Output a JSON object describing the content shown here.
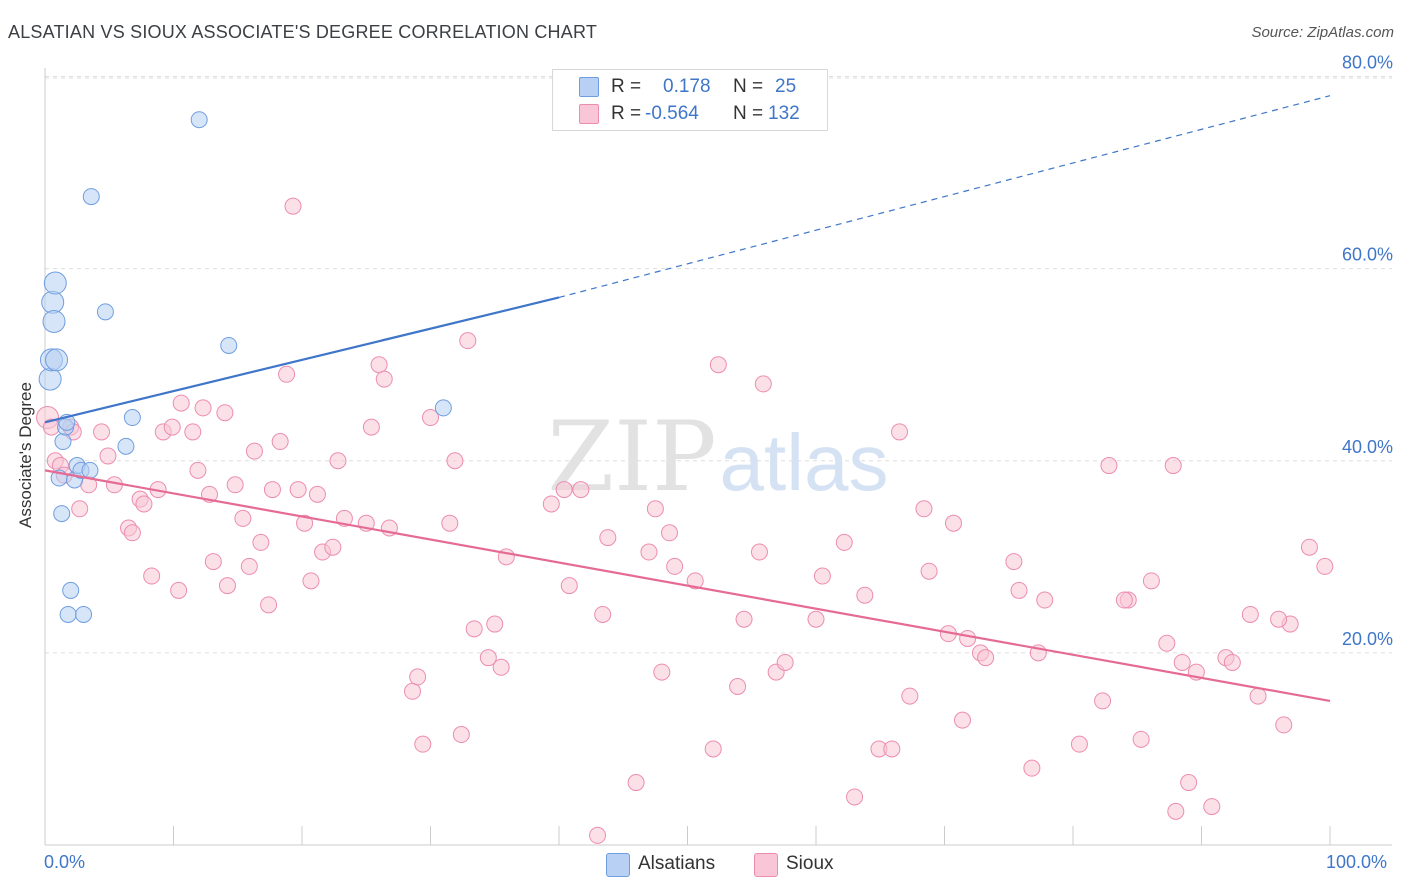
{
  "title": "ALSATIAN VS SIOUX ASSOCIATE'S DEGREE CORRELATION CHART",
  "source": "Source: ZipAtlas.com",
  "watermark": {
    "zip": "ZIP",
    "atlas": "atlas"
  },
  "colors": {
    "blue": "#3f76c9",
    "blue_fill": "#b7d0f3",
    "blue_stroke": "#6f9ee0",
    "pink": "#e56b94",
    "pink_fill": "#f8c6d6",
    "pink_stroke": "#ec8db0",
    "grid": "#dddddd"
  },
  "stats": {
    "alsatians": {
      "r_label": "R =",
      "r_value": "0.178",
      "n_label": "N =",
      "n_value": "25"
    },
    "sioux": {
      "r_label": "R =",
      "r_value": "-0.564",
      "n_label": "N =",
      "n_value": "132"
    }
  },
  "legend": {
    "alsatians": "Alsatians",
    "sioux": "Sioux"
  },
  "chart_data": {
    "type": "scatter",
    "title": "ALSATIAN VS SIOUX ASSOCIATE'S DEGREE CORRELATION CHART",
    "xlabel": "",
    "ylabel": "Associate's Degree",
    "xlim": [
      0,
      100
    ],
    "ylim": [
      0,
      80
    ],
    "x_tick_labels": [
      "0.0%",
      "100.0%"
    ],
    "y_tick_labels": [
      "20.0%",
      "40.0%",
      "60.0%",
      "80.0%"
    ],
    "y_ticks": [
      20,
      40,
      60,
      80
    ],
    "series": [
      {
        "name": "Alsatians",
        "points": [
          [
            0.4,
            48.5
          ],
          [
            0.5,
            50.5
          ],
          [
            0.6,
            56.5
          ],
          [
            0.7,
            54.5
          ],
          [
            0.8,
            58.5
          ],
          [
            0.9,
            50.5
          ],
          [
            1.1,
            38.2
          ],
          [
            1.3,
            34.5
          ],
          [
            1.4,
            42.0
          ],
          [
            1.6,
            43.5
          ],
          [
            1.7,
            44.0
          ],
          [
            1.8,
            24.0
          ],
          [
            2.0,
            26.5
          ],
          [
            2.3,
            38.0
          ],
          [
            2.5,
            39.5
          ],
          [
            2.8,
            39.0
          ],
          [
            3.0,
            24.0
          ],
          [
            3.5,
            39.0
          ],
          [
            3.6,
            67.5
          ],
          [
            4.7,
            55.5
          ],
          [
            6.3,
            41.5
          ],
          [
            6.8,
            44.5
          ],
          [
            12.0,
            75.5
          ],
          [
            14.3,
            52.0
          ],
          [
            31.0,
            45.5
          ]
        ],
        "trend": {
          "x0": 0,
          "y0": 44.0,
          "x1": 40,
          "y1": 57.0,
          "extend_to_x": 100,
          "extend_to_y": 78.0
        }
      },
      {
        "name": "Sioux",
        "points": [
          [
            0.2,
            44.5
          ],
          [
            0.5,
            43.5
          ],
          [
            0.8,
            40.0
          ],
          [
            1.2,
            39.5
          ],
          [
            1.5,
            38.5
          ],
          [
            2.0,
            43.5
          ],
          [
            2.2,
            43.0
          ],
          [
            2.7,
            35.0
          ],
          [
            3.4,
            37.5
          ],
          [
            4.4,
            43.0
          ],
          [
            4.9,
            40.5
          ],
          [
            5.4,
            37.5
          ],
          [
            6.5,
            33.0
          ],
          [
            6.8,
            32.5
          ],
          [
            7.4,
            36.0
          ],
          [
            7.7,
            35.5
          ],
          [
            8.3,
            28.0
          ],
          [
            8.8,
            37.0
          ],
          [
            9.2,
            43.0
          ],
          [
            9.9,
            43.5
          ],
          [
            10.4,
            26.5
          ],
          [
            10.6,
            46.0
          ],
          [
            11.5,
            43.0
          ],
          [
            11.9,
            39.0
          ],
          [
            12.3,
            45.5
          ],
          [
            12.8,
            36.5
          ],
          [
            13.1,
            29.5
          ],
          [
            14.0,
            45.0
          ],
          [
            14.2,
            27.0
          ],
          [
            14.8,
            37.5
          ],
          [
            15.4,
            34.0
          ],
          [
            15.9,
            29.0
          ],
          [
            16.3,
            41.0
          ],
          [
            16.8,
            31.5
          ],
          [
            17.4,
            25.0
          ],
          [
            17.7,
            37.0
          ],
          [
            18.3,
            42.0
          ],
          [
            18.8,
            49.0
          ],
          [
            19.3,
            66.5
          ],
          [
            19.7,
            37.0
          ],
          [
            20.2,
            33.5
          ],
          [
            20.7,
            27.5
          ],
          [
            21.2,
            36.5
          ],
          [
            21.6,
            30.5
          ],
          [
            22.4,
            31.0
          ],
          [
            22.8,
            40.0
          ],
          [
            23.3,
            34.0
          ],
          [
            25.0,
            33.5
          ],
          [
            25.4,
            43.5
          ],
          [
            26.0,
            50.0
          ],
          [
            26.4,
            48.5
          ],
          [
            26.8,
            33.0
          ],
          [
            28.6,
            16.0
          ],
          [
            29.0,
            17.5
          ],
          [
            29.4,
            10.5
          ],
          [
            30.0,
            44.5
          ],
          [
            31.5,
            33.5
          ],
          [
            31.9,
            40.0
          ],
          [
            32.4,
            11.5
          ],
          [
            32.9,
            52.5
          ],
          [
            33.4,
            22.5
          ],
          [
            34.5,
            19.5
          ],
          [
            35.0,
            23.0
          ],
          [
            35.5,
            18.5
          ],
          [
            35.9,
            30.0
          ],
          [
            39.4,
            35.5
          ],
          [
            40.4,
            37.0
          ],
          [
            40.8,
            27.0
          ],
          [
            41.7,
            37.0
          ],
          [
            43.0,
            1.0
          ],
          [
            43.4,
            24.0
          ],
          [
            43.8,
            32.0
          ],
          [
            46.0,
            6.5
          ],
          [
            47.0,
            30.5
          ],
          [
            47.5,
            35.0
          ],
          [
            48.0,
            18.0
          ],
          [
            48.6,
            32.5
          ],
          [
            49.0,
            29.0
          ],
          [
            50.6,
            27.5
          ],
          [
            52.0,
            10.0
          ],
          [
            52.4,
            50.0
          ],
          [
            53.9,
            16.5
          ],
          [
            54.4,
            23.5
          ],
          [
            55.6,
            30.5
          ],
          [
            55.9,
            48.0
          ],
          [
            56.9,
            18.0
          ],
          [
            57.6,
            19.0
          ],
          [
            60.0,
            23.5
          ],
          [
            60.5,
            28.0
          ],
          [
            62.2,
            31.5
          ],
          [
            63.0,
            5.0
          ],
          [
            63.8,
            26.0
          ],
          [
            64.9,
            10.0
          ],
          [
            65.9,
            10.0
          ],
          [
            66.5,
            43.0
          ],
          [
            67.3,
            15.5
          ],
          [
            68.4,
            35.0
          ],
          [
            68.8,
            28.5
          ],
          [
            70.3,
            22.0
          ],
          [
            70.7,
            33.5
          ],
          [
            71.4,
            13.0
          ],
          [
            72.8,
            20.0
          ],
          [
            73.2,
            19.5
          ],
          [
            75.4,
            29.5
          ],
          [
            75.8,
            26.5
          ],
          [
            76.8,
            8.0
          ],
          [
            77.3,
            20.0
          ],
          [
            77.8,
            25.5
          ],
          [
            80.5,
            10.5
          ],
          [
            82.3,
            15.0
          ],
          [
            82.8,
            39.5
          ],
          [
            84.3,
            25.5
          ],
          [
            85.3,
            11.0
          ],
          [
            86.1,
            27.5
          ],
          [
            87.3,
            21.0
          ],
          [
            87.8,
            39.5
          ],
          [
            88.0,
            3.5
          ],
          [
            88.5,
            19.0
          ],
          [
            89.0,
            6.5
          ],
          [
            89.6,
            18.0
          ],
          [
            90.8,
            4.0
          ],
          [
            91.9,
            19.5
          ],
          [
            92.4,
            19.0
          ],
          [
            93.8,
            24.0
          ],
          [
            94.4,
            15.5
          ],
          [
            96.4,
            12.5
          ],
          [
            96.9,
            23.0
          ],
          [
            98.4,
            31.0
          ],
          [
            99.6,
            29.0
          ],
          [
            84.0,
            25.5
          ],
          [
            71.8,
            21.5
          ],
          [
            96.0,
            23.5
          ]
        ],
        "trend": {
          "x0": 0,
          "y0": 39.0,
          "x1": 100,
          "y1": 15.0
        }
      }
    ]
  }
}
